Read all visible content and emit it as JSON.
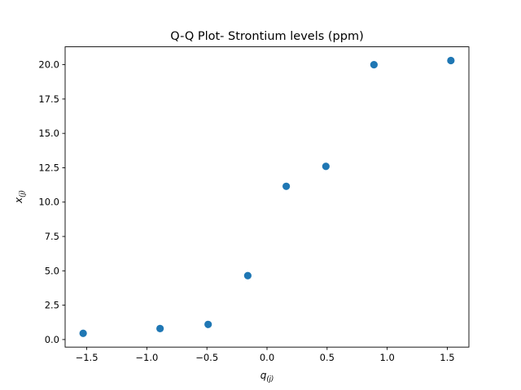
{
  "chart_data": {
    "type": "scatter",
    "title": "Q-Q Plot- Strontium levels (ppm)",
    "xlabel": {
      "main": "q",
      "sub": "(j)"
    },
    "ylabel": {
      "main": "x",
      "sub": "(j)"
    },
    "xlim": [
      -1.68,
      1.68
    ],
    "ylim": [
      -0.55,
      21.3
    ],
    "xticks": [
      -1.5,
      -1.0,
      -0.5,
      0.0,
      0.5,
      1.0,
      1.5
    ],
    "xtick_labels": [
      "−1.5",
      "−1.0",
      "−0.5",
      "0.0",
      "0.5",
      "1.0",
      "1.5"
    ],
    "yticks": [
      0.0,
      2.5,
      5.0,
      7.5,
      10.0,
      12.5,
      15.0,
      17.5,
      20.0
    ],
    "ytick_labels": [
      "0.0",
      "2.5",
      "5.0",
      "7.5",
      "10.0",
      "12.5",
      "15.0",
      "17.5",
      "20.0"
    ],
    "grid": false,
    "legend": false,
    "color": "#1f77b4",
    "points": [
      {
        "x": -1.53,
        "y": 0.45
      },
      {
        "x": -0.89,
        "y": 0.8
      },
      {
        "x": -0.49,
        "y": 1.1
      },
      {
        "x": -0.16,
        "y": 4.65
      },
      {
        "x": 0.16,
        "y": 11.15
      },
      {
        "x": 0.49,
        "y": 12.6
      },
      {
        "x": 0.89,
        "y": 20.0
      },
      {
        "x": 1.53,
        "y": 20.3
      }
    ]
  }
}
